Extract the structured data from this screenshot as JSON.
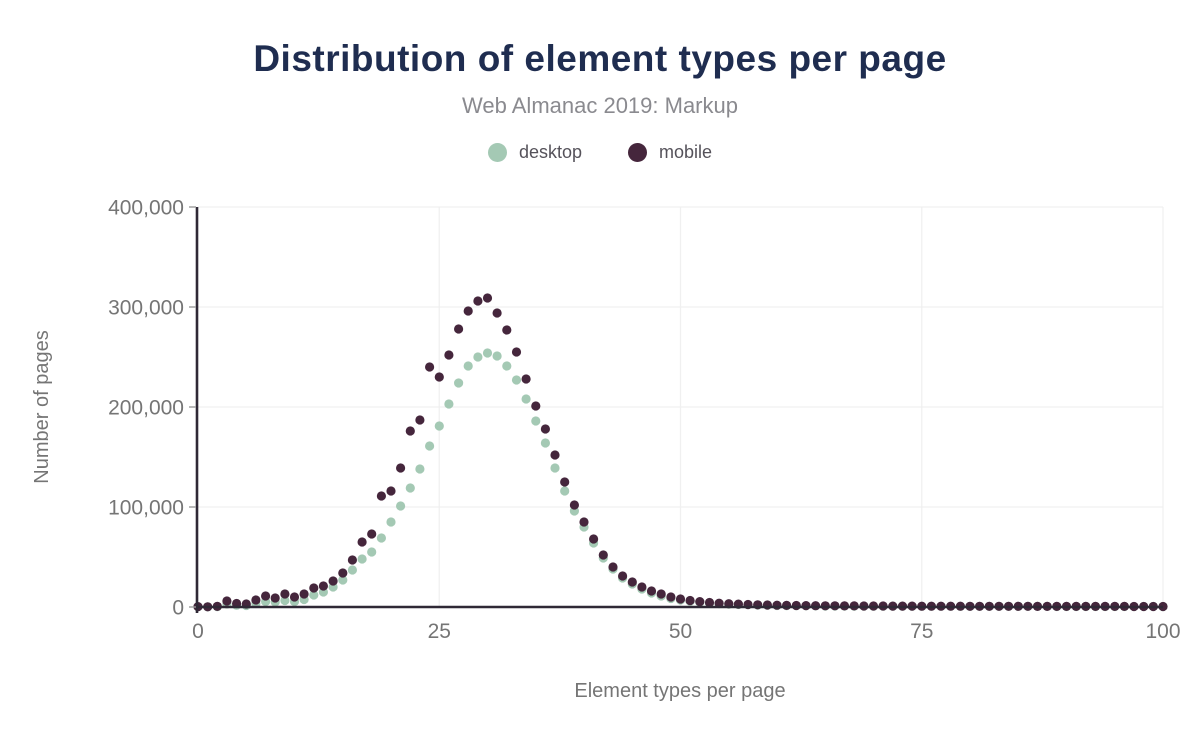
{
  "header": {
    "title": "Distribution of element types per page",
    "subtitle": "Web Almanac 2019: Markup"
  },
  "colors": {
    "title": "#1f2d50",
    "subtitle": "#8a8a8f",
    "axis_line": "#2f2936",
    "tick_text": "#757575",
    "gridline": "#f0f0f0",
    "desktop": "#a4c9b4",
    "mobile": "#45263c",
    "background": "#ffffff"
  },
  "chart_data": {
    "type": "scatter",
    "title": "Distribution of element types per page",
    "subtitle": "Web Almanac 2019: Markup",
    "xlabel": "Element types per page",
    "ylabel": "Number of pages",
    "xlim": [
      0,
      100
    ],
    "ylim": [
      0,
      400000
    ],
    "x_ticks": [
      0,
      25,
      50,
      75,
      100
    ],
    "y_ticks": [
      0,
      100000,
      200000,
      300000,
      400000
    ],
    "grid": true,
    "legend_position": "top",
    "marker_radius_px": 4.6,
    "x": [
      0,
      1,
      2,
      3,
      4,
      5,
      6,
      7,
      8,
      9,
      10,
      11,
      12,
      13,
      14,
      15,
      16,
      17,
      18,
      19,
      20,
      21,
      22,
      23,
      24,
      25,
      26,
      27,
      28,
      29,
      30,
      31,
      32,
      33,
      34,
      35,
      36,
      37,
      38,
      39,
      40,
      41,
      42,
      43,
      44,
      45,
      46,
      47,
      48,
      49,
      50,
      51,
      52,
      53,
      54,
      55,
      56,
      57,
      58,
      59,
      60,
      61,
      62,
      63,
      64,
      65,
      66,
      67,
      68,
      69,
      70,
      71,
      72,
      73,
      74,
      75,
      76,
      77,
      78,
      79,
      80,
      81,
      82,
      83,
      84,
      85,
      86,
      87,
      88,
      89,
      90,
      91,
      92,
      93,
      94,
      95,
      96,
      97,
      98,
      99,
      100
    ],
    "series": [
      {
        "name": "desktop",
        "color": "#a4c9b4",
        "values": [
          250,
          150,
          400,
          3000,
          1800,
          1500,
          3500,
          5500,
          5000,
          6500,
          5500,
          7500,
          12000,
          15000,
          20000,
          27000,
          37000,
          48000,
          55000,
          69000,
          85000,
          101000,
          119000,
          138000,
          161000,
          181000,
          203000,
          224000,
          241000,
          250000,
          254000,
          251000,
          241000,
          227000,
          208000,
          186000,
          164000,
          139000,
          116000,
          96000,
          80000,
          64000,
          49000,
          38000,
          29000,
          23000,
          18000,
          14000,
          11000,
          8500,
          7000,
          5800,
          4800,
          4000,
          3400,
          2900,
          2500,
          2200,
          1900,
          1700,
          1500,
          1400,
          1300,
          1200,
          1100,
          1050,
          1000,
          950,
          900,
          870,
          840,
          810,
          780,
          760,
          740,
          720,
          700,
          680,
          660,
          650,
          640,
          630,
          620,
          610,
          600,
          590,
          580,
          570,
          560,
          550,
          540,
          530,
          520,
          510,
          500,
          490,
          480,
          470,
          460,
          450,
          440
        ]
      },
      {
        "name": "mobile",
        "color": "#45263c",
        "values": [
          400,
          200,
          600,
          6000,
          3500,
          3000,
          7000,
          11000,
          9000,
          13000,
          10000,
          13000,
          19000,
          21000,
          26000,
          34000,
          47000,
          65000,
          73000,
          111000,
          116000,
          139000,
          176000,
          187000,
          240000,
          230000,
          252000,
          278000,
          296000,
          306000,
          309000,
          294000,
          277000,
          255000,
          228000,
          201000,
          178000,
          152000,
          125000,
          102000,
          85000,
          68000,
          52000,
          40000,
          31000,
          25000,
          20000,
          16000,
          13000,
          10000,
          8000,
          6500,
          5400,
          4500,
          3800,
          3300,
          2900,
          2500,
          2200,
          2000,
          1800,
          1650,
          1500,
          1400,
          1300,
          1250,
          1200,
          1150,
          1100,
          1050,
          1000,
          950,
          900,
          880,
          860,
          840,
          820,
          800,
          780,
          760,
          740,
          720,
          700,
          690,
          680,
          670,
          660,
          650,
          640,
          630,
          620,
          610,
          600,
          590,
          580,
          570,
          560,
          550,
          540,
          530,
          520
        ]
      }
    ]
  }
}
